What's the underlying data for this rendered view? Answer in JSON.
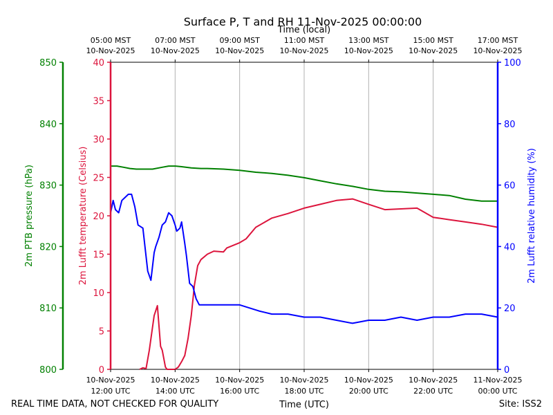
{
  "title": "Surface P, T and RH 11-Nov-2025 00:00:00",
  "top_axis_label": "Time (local)",
  "bottom_axis_label": "Time (UTC)",
  "footer_left": "REAL TIME DATA, NOT CHECKED FOR QUALITY",
  "footer_right": "Site: ISS2",
  "colors": {
    "pressure": "#008000",
    "temperature": "#dc143c",
    "humidity": "#0000ff",
    "grid": "#b0b0b0"
  },
  "chart_data": {
    "type": "line",
    "x_unit": "UTC hours on 10-Nov-2025",
    "xlim": [
      12,
      24
    ],
    "grid": "vertical",
    "x_ticks_bottom": [
      {
        "x": 12,
        "line1": "10-Nov-2025",
        "line2": "12:00 UTC"
      },
      {
        "x": 14,
        "line1": "10-Nov-2025",
        "line2": "14:00 UTC"
      },
      {
        "x": 16,
        "line1": "10-Nov-2025",
        "line2": "16:00 UTC"
      },
      {
        "x": 18,
        "line1": "10-Nov-2025",
        "line2": "18:00 UTC"
      },
      {
        "x": 20,
        "line1": "10-Nov-2025",
        "line2": "20:00 UTC"
      },
      {
        "x": 22,
        "line1": "10-Nov-2025",
        "line2": "22:00 UTC"
      },
      {
        "x": 24,
        "line1": "11-Nov-2025",
        "line2": "00:00 UTC"
      }
    ],
    "x_ticks_top": [
      {
        "x": 12,
        "line1": "05:00 MST",
        "line2": "10-Nov-2025"
      },
      {
        "x": 14,
        "line1": "07:00 MST",
        "line2": "10-Nov-2025"
      },
      {
        "x": 16,
        "line1": "09:00 MST",
        "line2": "10-Nov-2025"
      },
      {
        "x": 18,
        "line1": "11:00 MST",
        "line2": "10-Nov-2025"
      },
      {
        "x": 20,
        "line1": "13:00 MST",
        "line2": "10-Nov-2025"
      },
      {
        "x": 22,
        "line1": "15:00 MST",
        "line2": "10-Nov-2025"
      },
      {
        "x": 24,
        "line1": "17:00 MST",
        "line2": "10-Nov-2025"
      }
    ],
    "axes": {
      "pressure": {
        "label": "2m PTB pressure (hPa)",
        "ylim": [
          800,
          850
        ],
        "ticks": [
          800,
          810,
          820,
          830,
          840,
          850
        ]
      },
      "temperature": {
        "label": "2m Lufft temperature (Celsius)",
        "ylim": [
          0,
          40
        ],
        "ticks": [
          0,
          5,
          10,
          15,
          20,
          25,
          30,
          35,
          40
        ]
      },
      "humidity": {
        "label": "2m Lufft relative humidity (%)",
        "ylim": [
          0,
          100
        ],
        "ticks": [
          0,
          20,
          40,
          60,
          80,
          100
        ]
      }
    },
    "series": [
      {
        "key": "pressure",
        "x": [
          12.0,
          12.2,
          12.4,
          12.6,
          12.8,
          13.0,
          13.3,
          13.6,
          13.8,
          14.0,
          14.2,
          14.5,
          14.8,
          15.0,
          15.5,
          16.0,
          16.5,
          17.0,
          17.5,
          18.0,
          18.5,
          19.0,
          19.5,
          20.0,
          20.5,
          21.0,
          21.5,
          22.0,
          22.5,
          23.0,
          23.5,
          24.0
        ],
        "values": [
          833.1,
          833.1,
          832.9,
          832.7,
          832.6,
          832.6,
          832.6,
          832.9,
          833.1,
          833.1,
          833.0,
          832.8,
          832.7,
          832.7,
          832.6,
          832.4,
          832.1,
          831.9,
          831.6,
          831.2,
          830.7,
          830.2,
          829.8,
          829.3,
          829.0,
          828.9,
          828.7,
          828.5,
          828.3,
          827.7,
          827.4,
          827.4
        ]
      },
      {
        "key": "temperature",
        "x": [
          12.9,
          13.0,
          13.1,
          13.2,
          13.35,
          13.45,
          13.55,
          13.6,
          13.7,
          13.75,
          13.8,
          13.9,
          14.0,
          14.1,
          14.2,
          14.3,
          14.4,
          14.5,
          14.6,
          14.7,
          14.8,
          15.0,
          15.2,
          15.5,
          15.6,
          16.0,
          16.2,
          16.5,
          17.0,
          17.5,
          18.0,
          18.5,
          19.0,
          19.5,
          20.0,
          20.5,
          21.0,
          21.5,
          22.0,
          22.5,
          23.0,
          23.5,
          24.0
        ],
        "values": [
          0.0,
          0.2,
          0.1,
          2.5,
          7.0,
          8.3,
          3.0,
          2.5,
          0.3,
          0.0,
          0.0,
          0.0,
          0.0,
          0.3,
          1.0,
          1.8,
          4.0,
          7.0,
          11.0,
          13.5,
          14.3,
          15.0,
          15.4,
          15.3,
          15.8,
          16.5,
          17.0,
          18.5,
          19.7,
          20.3,
          21.0,
          21.5,
          22.0,
          22.2,
          21.5,
          20.8,
          20.9,
          21.0,
          19.8,
          19.5,
          19.2,
          18.9,
          18.5
        ]
      },
      {
        "key": "humidity",
        "x": [
          12.0,
          12.08,
          12.15,
          12.25,
          12.35,
          12.45,
          12.55,
          12.65,
          12.75,
          12.85,
          13.0,
          13.15,
          13.25,
          13.35,
          13.4,
          13.5,
          13.55,
          13.6,
          13.7,
          13.8,
          13.9,
          14.0,
          14.05,
          14.15,
          14.2,
          14.3,
          14.35,
          14.45,
          14.55,
          14.65,
          14.75,
          14.85,
          15.0,
          15.3,
          15.5,
          16.0,
          16.3,
          16.6,
          17.0,
          17.5,
          18.0,
          18.5,
          19.0,
          19.5,
          20.0,
          20.5,
          21.0,
          21.5,
          22.0,
          22.5,
          23.0,
          23.5,
          24.0
        ],
        "values": [
          51,
          55,
          52,
          51,
          55,
          56,
          57,
          57,
          53,
          47,
          46,
          32,
          29,
          38,
          40,
          43,
          45,
          47,
          48,
          51,
          50,
          47,
          45,
          46,
          48,
          41,
          37,
          28,
          27,
          23,
          21,
          21,
          21,
          21,
          21,
          21,
          20,
          19,
          18,
          18,
          17,
          17,
          16,
          15,
          16,
          16,
          17,
          16,
          17,
          17,
          18,
          18,
          17
        ]
      }
    ]
  }
}
